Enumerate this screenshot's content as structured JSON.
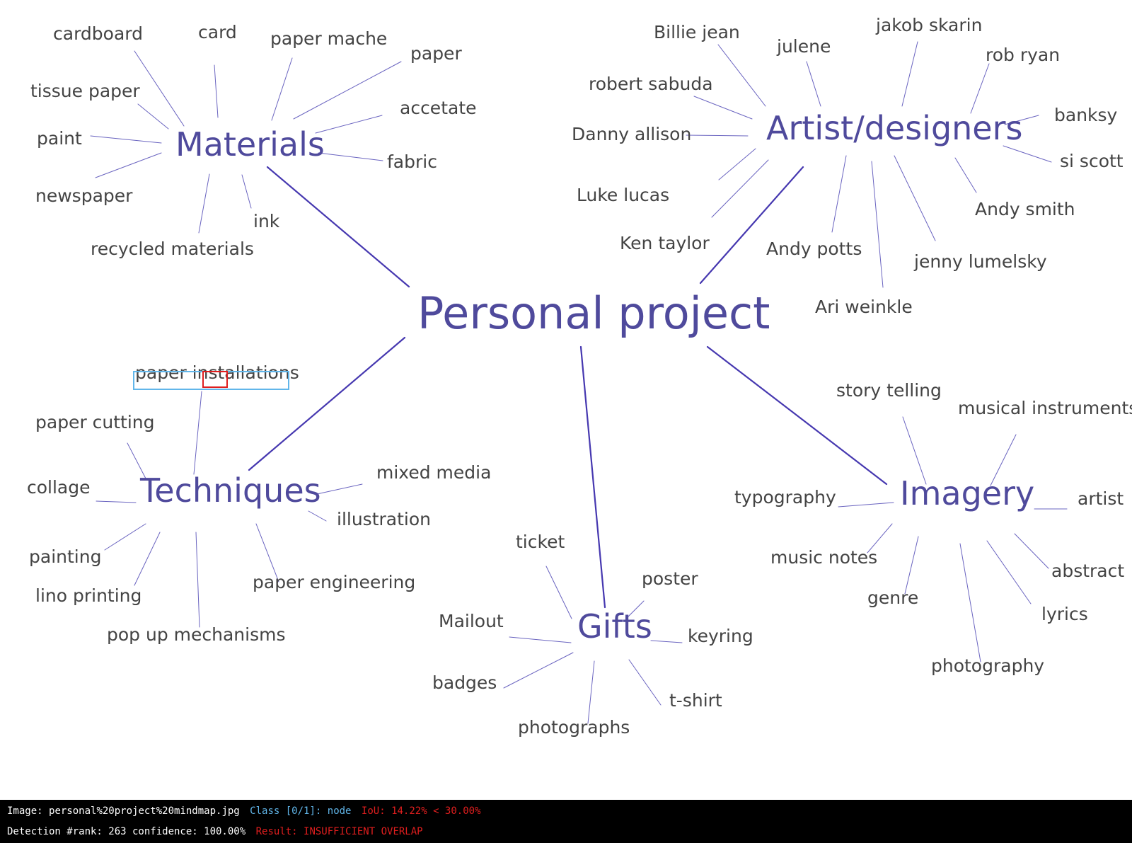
{
  "colors": {
    "hub_text": "#4f4a9c",
    "leaf_text": "#444444",
    "hub_line": "#4638b0",
    "leaf_line": "#6a64c0",
    "gt_box": "#61b6ea",
    "pred_box": "#e01e1e",
    "status_bg": "#000000",
    "status_text": "#ffffff",
    "status_class": "#61b6ea",
    "status_alert": "#e01e1e"
  },
  "mindmap": {
    "center": "Personal project",
    "branches": [
      {
        "label": "Materials",
        "children": [
          "cardboard",
          "card",
          "paper mache",
          "paper",
          "tissue paper",
          "accetate",
          "paint",
          "fabric",
          "newspaper",
          "ink",
          "recycled materials"
        ]
      },
      {
        "label": "Artist/designers",
        "children": [
          "Billie jean",
          "julene",
          "jakob skarin",
          "rob ryan",
          "robert sabuda",
          "banksy",
          "Danny allison",
          "si scott",
          "Luke lucas",
          "Andy smith",
          "Ken taylor",
          "Andy potts",
          "jenny lumelsky",
          "Ari weinkle"
        ]
      },
      {
        "label": "Techniques",
        "children": [
          "paper installations",
          "paper cutting",
          "mixed media",
          "collage",
          "illustration",
          "painting",
          "lino printing",
          "paper engineering",
          "pop up mechanisms"
        ]
      },
      {
        "label": "Gifts",
        "children": [
          "ticket",
          "poster",
          "Mailout",
          "keyring",
          "badges",
          "t-shirt",
          "photographs"
        ]
      },
      {
        "label": "Imagery",
        "children": [
          "story telling",
          "musical instruments",
          "typography",
          "artist",
          "music notes",
          "abstract",
          "genre",
          "lyrics",
          "photography"
        ]
      }
    ]
  },
  "detection": {
    "image_label": "Image:",
    "image_name": "personal%20project%20mindmap.jpg",
    "class_text": "Class [0/1]:",
    "class_name": "node",
    "iou_text": "IoU: 14.22% < 30.00%",
    "rank_text": "Detection #rank: 263 confidence: 100.00%",
    "result_text": "Result: INSUFFICIENT OVERLAP"
  }
}
